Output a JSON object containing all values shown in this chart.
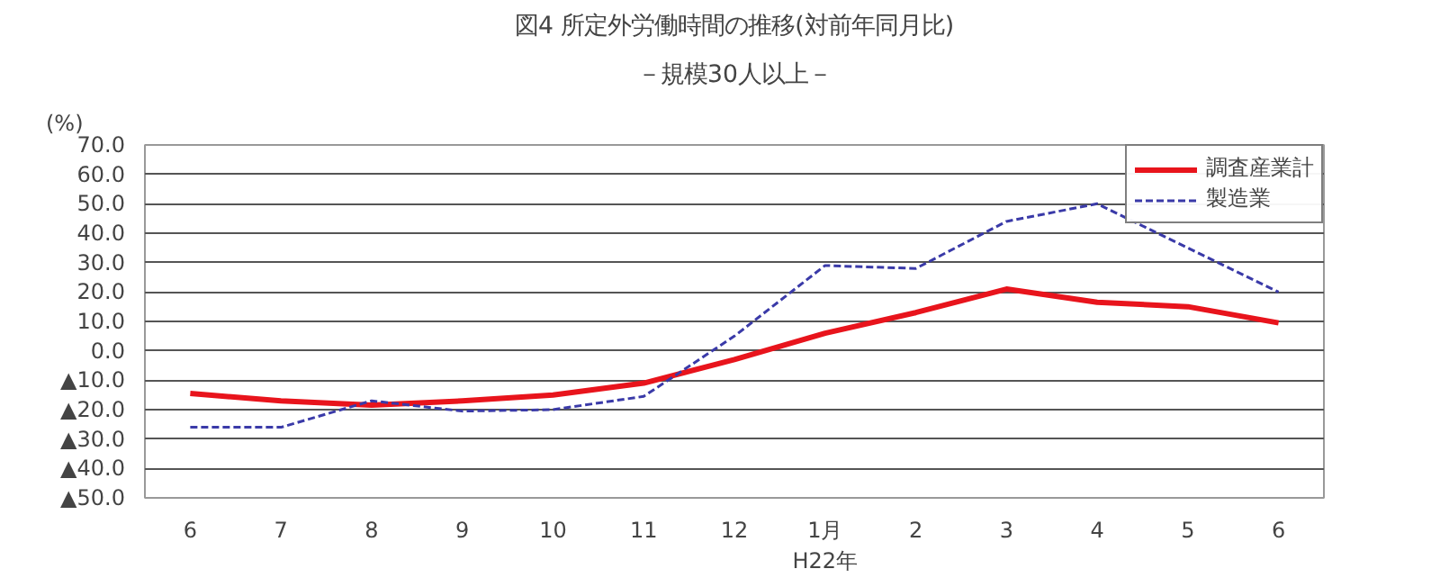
{
  "chart_data": {
    "type": "line",
    "title": "図4 所定外労働時間の推移(対前年同月比)",
    "subtitle": "－規模30人以上－",
    "ylabel": "(%)",
    "categories": [
      "6",
      "7",
      "8",
      "9",
      "10",
      "11",
      "12",
      "1月\nH22年",
      "2",
      "3",
      "4",
      "5",
      "6"
    ],
    "series": [
      {
        "name": "調査産業計",
        "color": "#e8141c",
        "line_style": "solid",
        "values": [
          -14.5,
          -17,
          -18.5,
          -17,
          -15,
          -11,
          -3,
          6,
          13,
          21,
          16.5,
          15,
          9.5
        ]
      },
      {
        "name": "製造業",
        "color": "#3a3aa8",
        "line_style": "dashed",
        "values": [
          -26,
          -26,
          -17,
          -20.5,
          -20,
          -15.5,
          5,
          29,
          28,
          44,
          50,
          35,
          20
        ]
      }
    ],
    "ylim": [
      -50,
      70
    ],
    "yticks": [
      {
        "value": -50,
        "label": "▲50.0"
      },
      {
        "value": -40,
        "label": "▲40.0"
      },
      {
        "value": -30,
        "label": "▲30.0"
      },
      {
        "value": -20,
        "label": "▲20.0"
      },
      {
        "value": -10,
        "label": "▲10.0"
      },
      {
        "value": 0,
        "label": "0.0"
      },
      {
        "value": 10,
        "label": "10.0"
      },
      {
        "value": 20,
        "label": "20.0"
      },
      {
        "value": 30,
        "label": "30.0"
      },
      {
        "value": 40,
        "label": "40.0"
      },
      {
        "value": 50,
        "label": "50.0"
      },
      {
        "value": 60,
        "label": "60.0"
      },
      {
        "value": 70,
        "label": "70.0"
      }
    ],
    "grid": "y",
    "legend": "top right",
    "marker": "none"
  }
}
